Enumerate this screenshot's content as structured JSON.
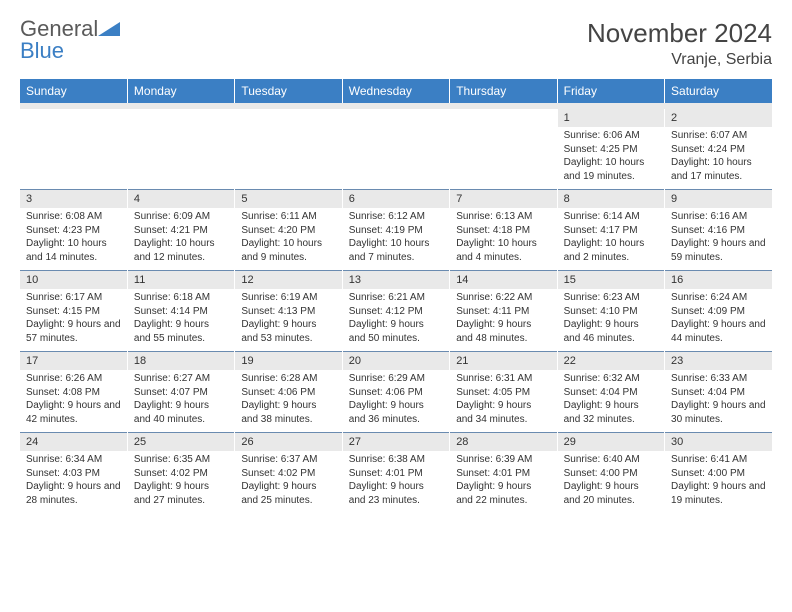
{
  "logo": {
    "word1": "General",
    "word2": "Blue"
  },
  "header": {
    "title": "November 2024",
    "location": "Vranje, Serbia"
  },
  "colors": {
    "header_bg": "#3b7fc4",
    "header_text": "#ffffff",
    "daynum_bg": "#e9e9e9",
    "border_top": "#6a8bb0",
    "text": "#333333",
    "logo_gray": "#5a5a5a",
    "logo_blue": "#3b7fc4"
  },
  "dayNames": [
    "Sunday",
    "Monday",
    "Tuesday",
    "Wednesday",
    "Thursday",
    "Friday",
    "Saturday"
  ],
  "weeks": [
    [
      {
        "empty": true
      },
      {
        "empty": true
      },
      {
        "empty": true
      },
      {
        "empty": true
      },
      {
        "empty": true
      },
      {
        "num": "1",
        "sunrise": "Sunrise: 6:06 AM",
        "sunset": "Sunset: 4:25 PM",
        "daylight": "Daylight: 10 hours and 19 minutes."
      },
      {
        "num": "2",
        "sunrise": "Sunrise: 6:07 AM",
        "sunset": "Sunset: 4:24 PM",
        "daylight": "Daylight: 10 hours and 17 minutes."
      }
    ],
    [
      {
        "num": "3",
        "sunrise": "Sunrise: 6:08 AM",
        "sunset": "Sunset: 4:23 PM",
        "daylight": "Daylight: 10 hours and 14 minutes."
      },
      {
        "num": "4",
        "sunrise": "Sunrise: 6:09 AM",
        "sunset": "Sunset: 4:21 PM",
        "daylight": "Daylight: 10 hours and 12 minutes."
      },
      {
        "num": "5",
        "sunrise": "Sunrise: 6:11 AM",
        "sunset": "Sunset: 4:20 PM",
        "daylight": "Daylight: 10 hours and 9 minutes."
      },
      {
        "num": "6",
        "sunrise": "Sunrise: 6:12 AM",
        "sunset": "Sunset: 4:19 PM",
        "daylight": "Daylight: 10 hours and 7 minutes."
      },
      {
        "num": "7",
        "sunrise": "Sunrise: 6:13 AM",
        "sunset": "Sunset: 4:18 PM",
        "daylight": "Daylight: 10 hours and 4 minutes."
      },
      {
        "num": "8",
        "sunrise": "Sunrise: 6:14 AM",
        "sunset": "Sunset: 4:17 PM",
        "daylight": "Daylight: 10 hours and 2 minutes."
      },
      {
        "num": "9",
        "sunrise": "Sunrise: 6:16 AM",
        "sunset": "Sunset: 4:16 PM",
        "daylight": "Daylight: 9 hours and 59 minutes."
      }
    ],
    [
      {
        "num": "10",
        "sunrise": "Sunrise: 6:17 AM",
        "sunset": "Sunset: 4:15 PM",
        "daylight": "Daylight: 9 hours and 57 minutes."
      },
      {
        "num": "11",
        "sunrise": "Sunrise: 6:18 AM",
        "sunset": "Sunset: 4:14 PM",
        "daylight": "Daylight: 9 hours and 55 minutes."
      },
      {
        "num": "12",
        "sunrise": "Sunrise: 6:19 AM",
        "sunset": "Sunset: 4:13 PM",
        "daylight": "Daylight: 9 hours and 53 minutes."
      },
      {
        "num": "13",
        "sunrise": "Sunrise: 6:21 AM",
        "sunset": "Sunset: 4:12 PM",
        "daylight": "Daylight: 9 hours and 50 minutes."
      },
      {
        "num": "14",
        "sunrise": "Sunrise: 6:22 AM",
        "sunset": "Sunset: 4:11 PM",
        "daylight": "Daylight: 9 hours and 48 minutes."
      },
      {
        "num": "15",
        "sunrise": "Sunrise: 6:23 AM",
        "sunset": "Sunset: 4:10 PM",
        "daylight": "Daylight: 9 hours and 46 minutes."
      },
      {
        "num": "16",
        "sunrise": "Sunrise: 6:24 AM",
        "sunset": "Sunset: 4:09 PM",
        "daylight": "Daylight: 9 hours and 44 minutes."
      }
    ],
    [
      {
        "num": "17",
        "sunrise": "Sunrise: 6:26 AM",
        "sunset": "Sunset: 4:08 PM",
        "daylight": "Daylight: 9 hours and 42 minutes."
      },
      {
        "num": "18",
        "sunrise": "Sunrise: 6:27 AM",
        "sunset": "Sunset: 4:07 PM",
        "daylight": "Daylight: 9 hours and 40 minutes."
      },
      {
        "num": "19",
        "sunrise": "Sunrise: 6:28 AM",
        "sunset": "Sunset: 4:06 PM",
        "daylight": "Daylight: 9 hours and 38 minutes."
      },
      {
        "num": "20",
        "sunrise": "Sunrise: 6:29 AM",
        "sunset": "Sunset: 4:06 PM",
        "daylight": "Daylight: 9 hours and 36 minutes."
      },
      {
        "num": "21",
        "sunrise": "Sunrise: 6:31 AM",
        "sunset": "Sunset: 4:05 PM",
        "daylight": "Daylight: 9 hours and 34 minutes."
      },
      {
        "num": "22",
        "sunrise": "Sunrise: 6:32 AM",
        "sunset": "Sunset: 4:04 PM",
        "daylight": "Daylight: 9 hours and 32 minutes."
      },
      {
        "num": "23",
        "sunrise": "Sunrise: 6:33 AM",
        "sunset": "Sunset: 4:04 PM",
        "daylight": "Daylight: 9 hours and 30 minutes."
      }
    ],
    [
      {
        "num": "24",
        "sunrise": "Sunrise: 6:34 AM",
        "sunset": "Sunset: 4:03 PM",
        "daylight": "Daylight: 9 hours and 28 minutes."
      },
      {
        "num": "25",
        "sunrise": "Sunrise: 6:35 AM",
        "sunset": "Sunset: 4:02 PM",
        "daylight": "Daylight: 9 hours and 27 minutes."
      },
      {
        "num": "26",
        "sunrise": "Sunrise: 6:37 AM",
        "sunset": "Sunset: 4:02 PM",
        "daylight": "Daylight: 9 hours and 25 minutes."
      },
      {
        "num": "27",
        "sunrise": "Sunrise: 6:38 AM",
        "sunset": "Sunset: 4:01 PM",
        "daylight": "Daylight: 9 hours and 23 minutes."
      },
      {
        "num": "28",
        "sunrise": "Sunrise: 6:39 AM",
        "sunset": "Sunset: 4:01 PM",
        "daylight": "Daylight: 9 hours and 22 minutes."
      },
      {
        "num": "29",
        "sunrise": "Sunrise: 6:40 AM",
        "sunset": "Sunset: 4:00 PM",
        "daylight": "Daylight: 9 hours and 20 minutes."
      },
      {
        "num": "30",
        "sunrise": "Sunrise: 6:41 AM",
        "sunset": "Sunset: 4:00 PM",
        "daylight": "Daylight: 9 hours and 19 minutes."
      }
    ]
  ]
}
